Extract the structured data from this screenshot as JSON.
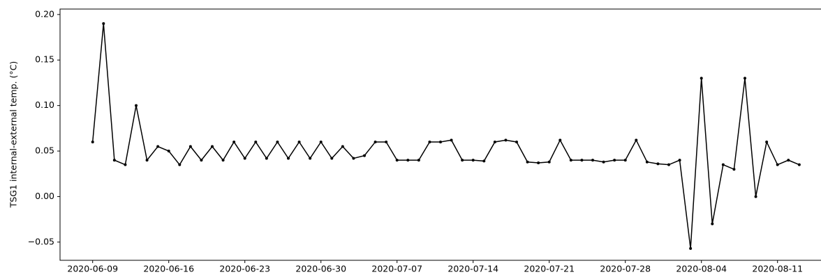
{
  "chart_data": {
    "type": "line",
    "ylabel": "TSG1 internal-external temp. (°C)",
    "x": [
      "2020-06-09",
      "2020-06-10",
      "2020-06-11",
      "2020-06-12",
      "2020-06-13",
      "2020-06-14",
      "2020-06-15",
      "2020-06-16",
      "2020-06-17",
      "2020-06-18",
      "2020-06-19",
      "2020-06-20",
      "2020-06-21",
      "2020-06-22",
      "2020-06-23",
      "2020-06-24",
      "2020-06-25",
      "2020-06-26",
      "2020-06-27",
      "2020-06-28",
      "2020-06-29",
      "2020-06-30",
      "2020-07-01",
      "2020-07-02",
      "2020-07-03",
      "2020-07-04",
      "2020-07-05",
      "2020-07-06",
      "2020-07-07",
      "2020-07-08",
      "2020-07-09",
      "2020-07-10",
      "2020-07-11",
      "2020-07-12",
      "2020-07-13",
      "2020-07-14",
      "2020-07-15",
      "2020-07-16",
      "2020-07-17",
      "2020-07-18",
      "2020-07-19",
      "2020-07-20",
      "2020-07-21",
      "2020-07-22",
      "2020-07-23",
      "2020-07-24",
      "2020-07-25",
      "2020-07-26",
      "2020-07-27",
      "2020-07-28",
      "2020-07-29",
      "2020-07-30",
      "2020-07-31",
      "2020-08-01",
      "2020-08-02",
      "2020-08-03",
      "2020-08-04",
      "2020-08-05",
      "2020-08-06",
      "2020-08-07",
      "2020-08-08",
      "2020-08-09",
      "2020-08-10",
      "2020-08-11",
      "2020-08-12",
      "2020-08-13"
    ],
    "series": [
      {
        "color": "#000000",
        "values": [
          0.06,
          0.19,
          0.04,
          0.035,
          0.1,
          0.04,
          0.055,
          0.05,
          0.035,
          0.055,
          0.04,
          0.055,
          0.04,
          0.06,
          0.042,
          0.06,
          0.042,
          0.06,
          0.042,
          0.06,
          0.042,
          0.06,
          0.042,
          0.055,
          0.042,
          0.045,
          0.06,
          0.06,
          0.04,
          0.04,
          0.04,
          0.06,
          0.06,
          0.062,
          0.04,
          0.04,
          0.039,
          0.06,
          0.062,
          0.06,
          0.038,
          0.037,
          0.038,
          0.062,
          0.04,
          0.04,
          0.04,
          0.038,
          0.04,
          0.04,
          0.062,
          0.038,
          0.036,
          0.035,
          0.04,
          -0.057,
          0.13,
          -0.03,
          0.035,
          0.03,
          0.13,
          0.0,
          0.06,
          0.035,
          0.04,
          0.035
        ]
      }
    ],
    "xlim": [
      "2020-06-06",
      "2020-08-15"
    ],
    "xticks": [
      "2020-06-09",
      "2020-06-16",
      "2020-06-23",
      "2020-06-30",
      "2020-07-07",
      "2020-07-14",
      "2020-07-21",
      "2020-07-28",
      "2020-08-04",
      "2020-08-11"
    ],
    "ylim": [
      -0.07,
      0.206
    ],
    "yticks": [
      {
        "value": -0.05,
        "label": "−0.05"
      },
      {
        "value": 0,
        "label": "0.00"
      },
      {
        "value": 0.05,
        "label": "0.05"
      },
      {
        "value": 0.1,
        "label": "0.10"
      },
      {
        "value": 0.15,
        "label": "0.15"
      },
      {
        "value": 0.2,
        "label": "0.20"
      }
    ]
  }
}
